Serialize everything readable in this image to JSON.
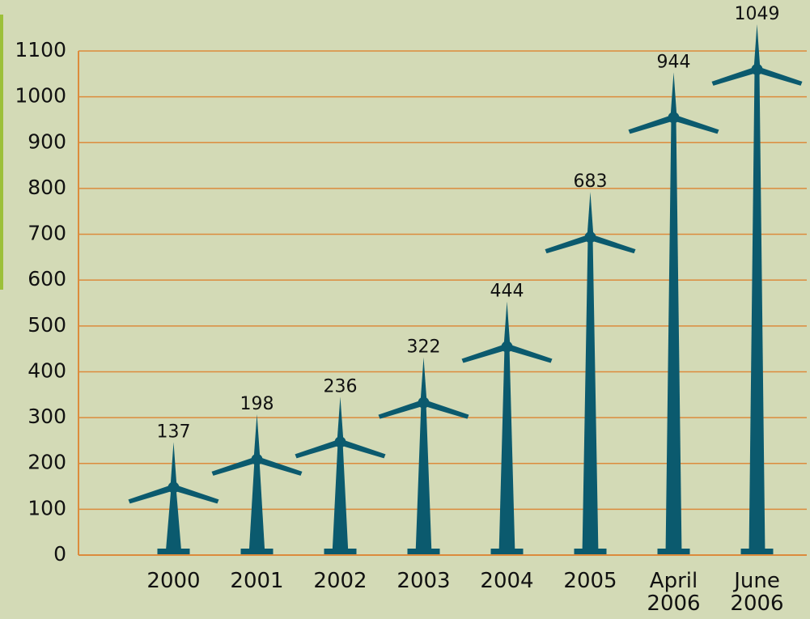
{
  "chart_data": {
    "type": "bar",
    "categories": [
      "2000",
      "2001",
      "2002",
      "2003",
      "2004",
      "2005",
      "April 2006",
      "June 2006"
    ],
    "values": [
      137,
      198,
      236,
      322,
      444,
      683,
      944,
      1049
    ],
    "color": "#0b5a6e",
    "grid_color": "#dc8b3c",
    "ylim": [
      0,
      1100
    ],
    "yticks": [
      0,
      100,
      200,
      300,
      400,
      500,
      600,
      700,
      800,
      900,
      1000,
      1100
    ],
    "grid": true
  }
}
